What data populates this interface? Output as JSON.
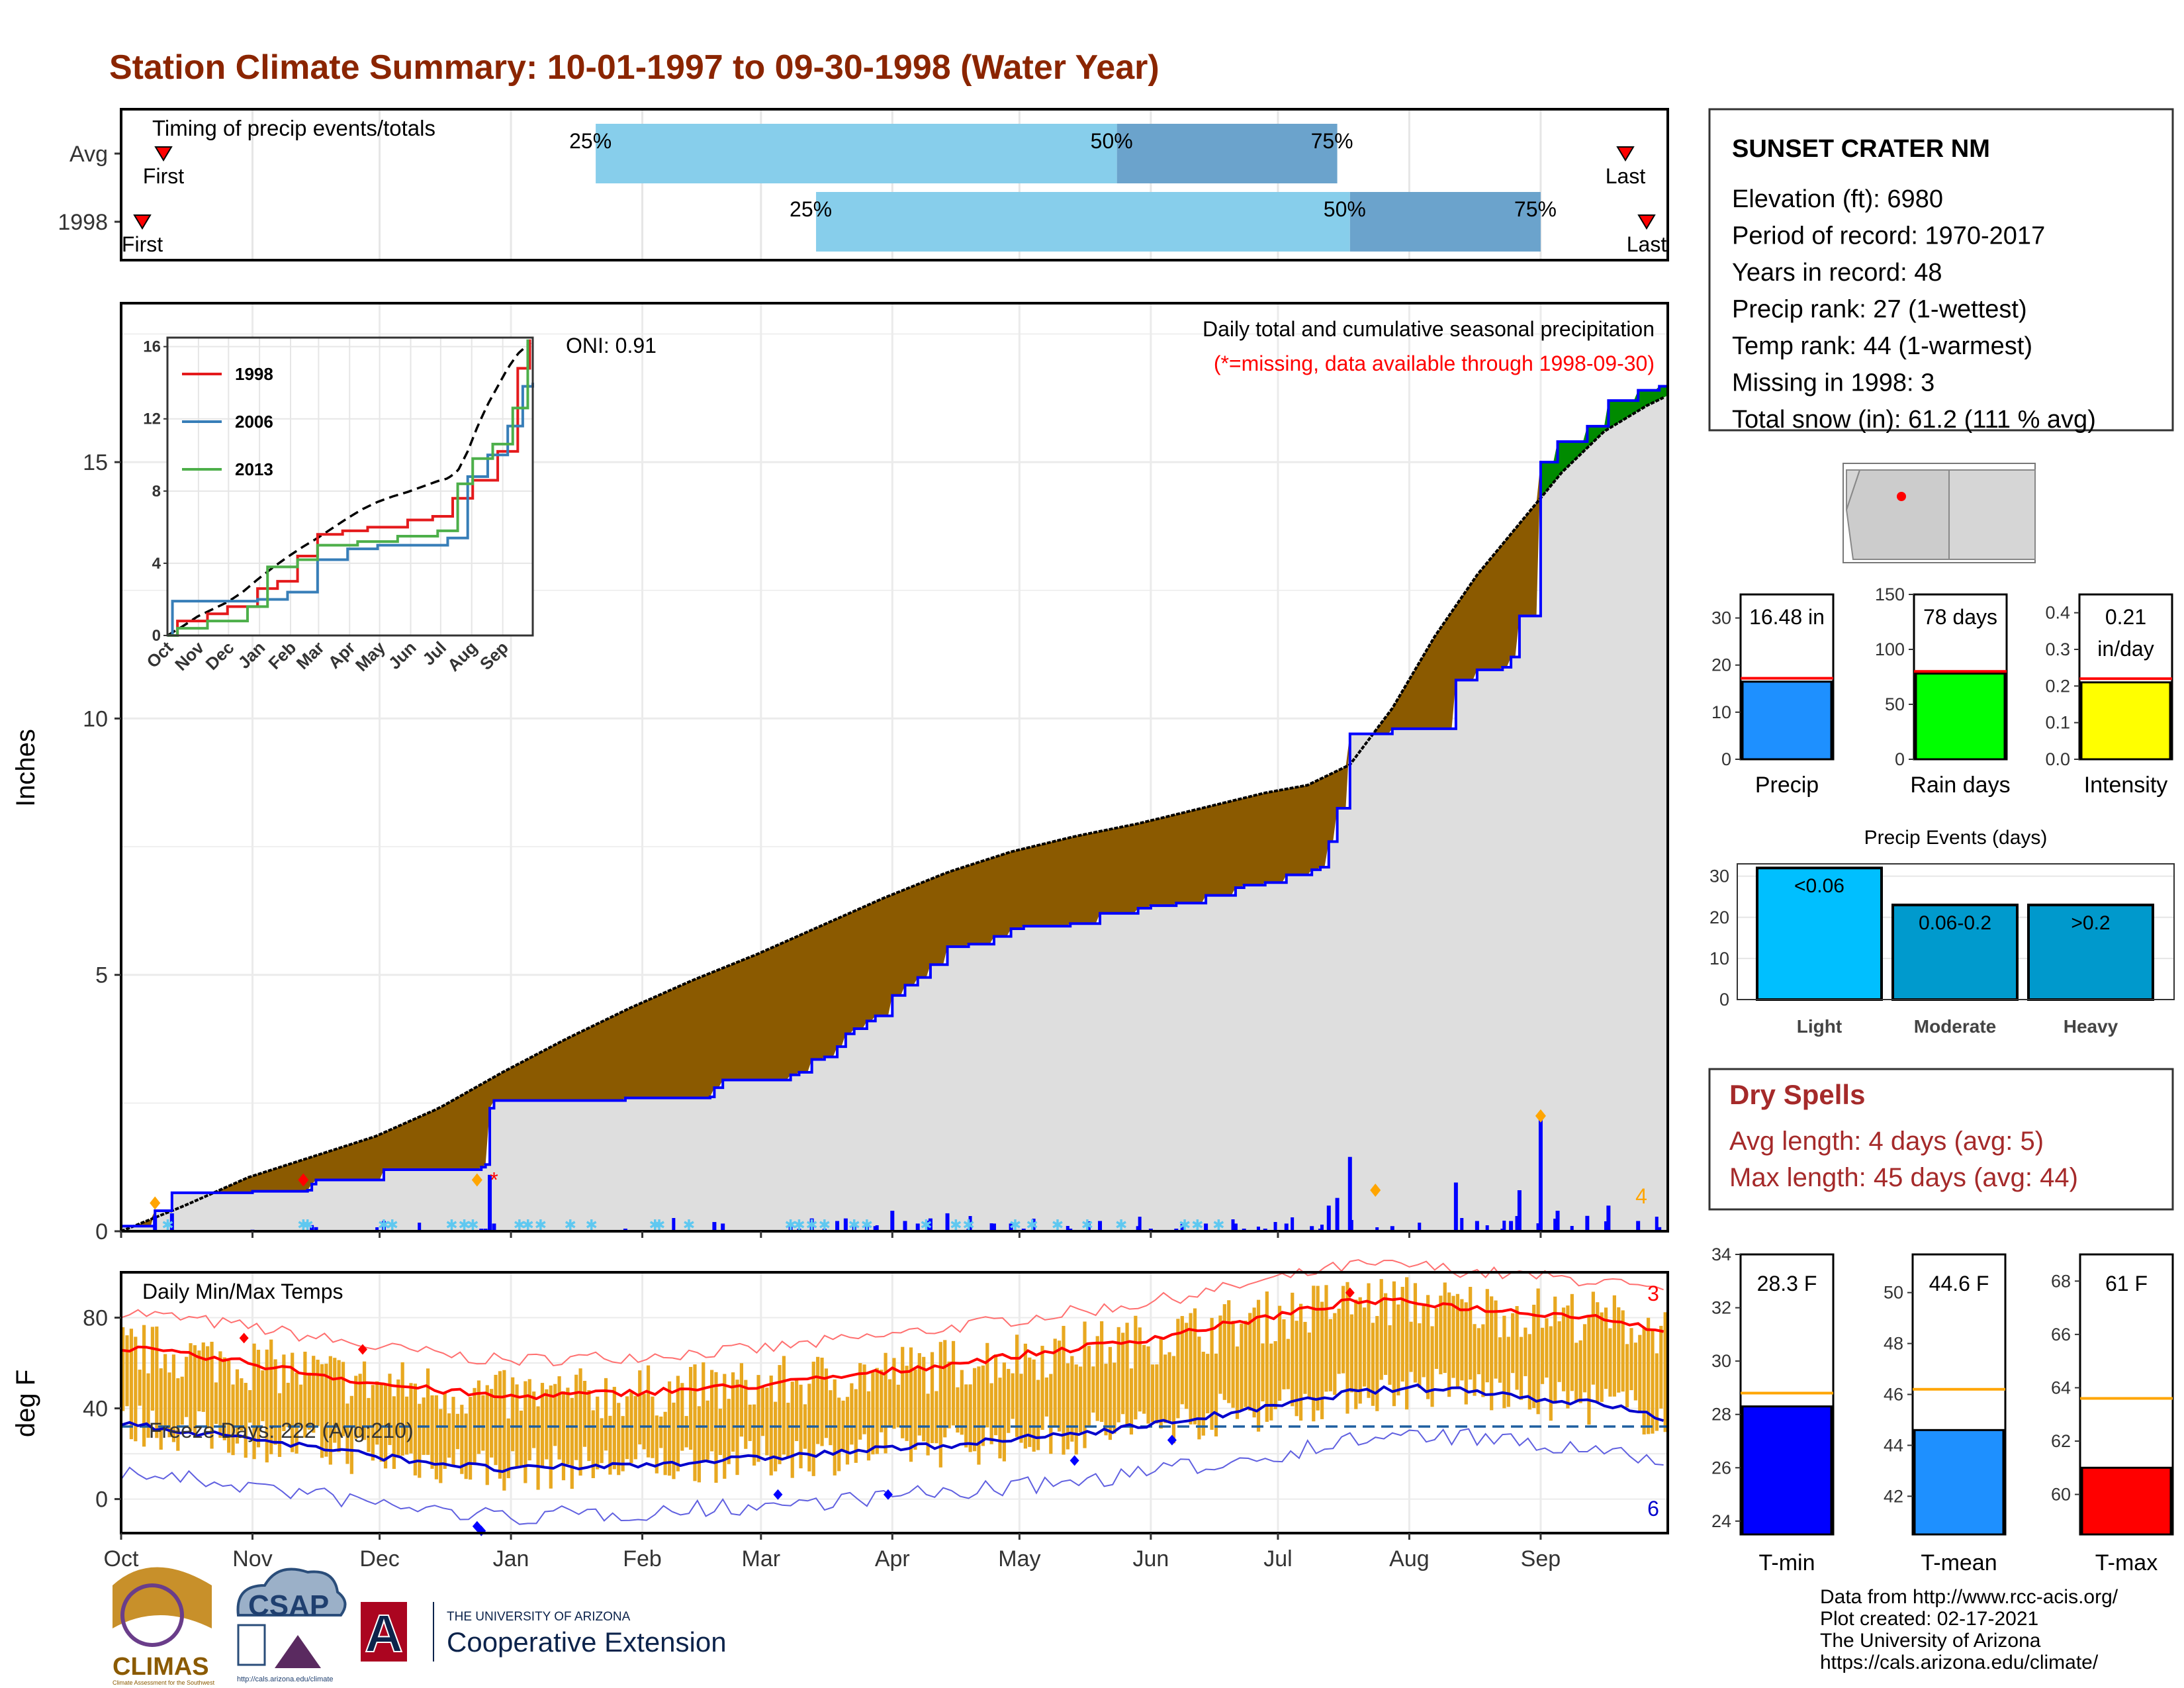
{
  "title": "Station Climate Summary: 10-01-1997 to 09-30-1998 (Water Year)",
  "colors": {
    "title": "#8B2500",
    "precip_bar": "#0000FF",
    "cum_fill": "#8B5A00",
    "excess_fill": "#008B00",
    "tmax": "#FF0000",
    "tmin": "#0000CC",
    "temp_range": "#E8A820",
    "light_blue": "#87CEEB",
    "steel_blue": "#6BA3CC"
  },
  "timing": {
    "label": "Timing of precip events/totals",
    "rows": [
      {
        "name": "Avg",
        "first": "First",
        "last": "Last",
        "p25": "25%",
        "p50": "50%",
        "p75": "75%",
        "first_doy": 10,
        "p25_doy": 112,
        "p50_doy": 235,
        "p75_doy": 287,
        "last_doy": 355
      },
      {
        "name": "1998",
        "first": "First",
        "last": "Last",
        "p25": "25%",
        "p50": "50%",
        "p75": "75%",
        "first_doy": 5,
        "p25_doy": 164,
        "p50_doy": 290,
        "p75_doy": 335,
        "last_doy": 360
      }
    ]
  },
  "precip": {
    "ylabel": "Inches",
    "yticks": [
      0,
      5,
      10,
      15
    ],
    "annotation_title": "Daily total and cumulative seasonal precipitation",
    "annotation_missing": "(*=missing, data available through 1998-09-30)",
    "oni": "ONI: 0.91",
    "missing_count": "4",
    "months": [
      "Oct",
      "Nov",
      "Dec",
      "Jan",
      "Feb",
      "Mar",
      "Apr",
      "May",
      "Jun",
      "Jul",
      "Aug",
      "Sep"
    ]
  },
  "chart_data": [
    {
      "type": "line",
      "title": "Daily total and cumulative seasonal precipitation",
      "ylabel": "Inches",
      "ylim": [
        0,
        18
      ],
      "series": [
        {
          "name": "cumulative_1998",
          "x": [
            0,
            8,
            12,
            31,
            44,
            45,
            46,
            62,
            85,
            86,
            87,
            88,
            119,
            139,
            140,
            142,
            158,
            160,
            163,
            166,
            169,
            171,
            173,
            176,
            178,
            182,
            185,
            188,
            191,
            195,
            200,
            206,
            210,
            213,
            224,
            231,
            240,
            243,
            249,
            256,
            263,
            265,
            270,
            275,
            281,
            283,
            285,
            287,
            290,
            300,
            315,
            320,
            326,
            328,
            330,
            335,
            339,
            346,
            351,
            358,
            363
          ],
          "y": [
            0.1,
            0.4,
            0.75,
            0.78,
            0.8,
            0.92,
            1.0,
            1.2,
            1.25,
            1.3,
            2.4,
            2.55,
            2.6,
            2.62,
            2.8,
            2.95,
            3.05,
            3.1,
            3.35,
            3.4,
            3.6,
            3.85,
            3.95,
            4.1,
            4.2,
            4.6,
            4.8,
            4.95,
            5.2,
            5.55,
            5.6,
            5.75,
            5.9,
            5.95,
            6.0,
            6.2,
            6.3,
            6.35,
            6.4,
            6.55,
            6.7,
            6.75,
            6.8,
            6.95,
            7.05,
            7.1,
            7.6,
            8.25,
            9.7,
            9.8,
            10.75,
            10.95,
            11.0,
            11.2,
            12.0,
            15.0,
            15.4,
            15.7,
            16.2,
            16.4,
            16.48
          ]
        },
        {
          "name": "cumulative_average",
          "x": [
            0,
            15,
            30,
            45,
            60,
            75,
            90,
            105,
            120,
            135,
            150,
            165,
            180,
            195,
            210,
            225,
            240,
            255,
            270,
            280,
            290,
            300,
            310,
            320,
            330,
            340,
            350,
            360,
            365
          ],
          "y": [
            0.0,
            0.5,
            1.05,
            1.45,
            1.85,
            2.4,
            3.1,
            3.75,
            4.35,
            4.9,
            5.4,
            5.95,
            6.5,
            7.0,
            7.4,
            7.7,
            7.95,
            8.25,
            8.55,
            8.7,
            9.1,
            10.2,
            11.6,
            12.8,
            13.8,
            14.8,
            15.6,
            16.1,
            16.3
          ]
        }
      ]
    },
    {
      "type": "line",
      "title": "Daily Min/Max Temps",
      "ylabel": "deg F",
      "ylim": [
        -15,
        100
      ],
      "freeze_line": 32,
      "series": [
        {
          "name": "Tmax_avg",
          "x": [
            0,
            30,
            60,
            90,
            120,
            150,
            180,
            210,
            240,
            270,
            290,
            305,
            320,
            335,
            350,
            365
          ],
          "y": [
            67,
            60,
            51,
            45,
            47,
            50,
            56,
            63,
            70,
            80,
            87,
            87,
            84,
            82,
            80,
            74
          ]
        },
        {
          "name": "Tmin_avg",
          "x": [
            0,
            30,
            60,
            90,
            120,
            150,
            180,
            210,
            240,
            270,
            290,
            305,
            320,
            335,
            350,
            365
          ],
          "y": [
            33,
            27,
            19,
            13,
            15,
            18,
            22,
            26,
            32,
            40,
            47,
            49,
            48,
            44,
            42,
            35
          ]
        }
      ]
    }
  ],
  "temps": {
    "label": "Daily Min/Max Temps",
    "ylabel": "deg F",
    "yticks": [
      0,
      40,
      80
    ],
    "freeze_text": "Freeze Days: 222 (Avg:210)",
    "count_high": "3",
    "count_low": "6"
  },
  "inset": {
    "yticks": [
      "0",
      "4",
      "8",
      "12",
      "16"
    ],
    "months": [
      "Oct",
      "Nov",
      "Dec",
      "Jan",
      "Feb",
      "Mar",
      "Apr",
      "May",
      "Jun",
      "Jul",
      "Aug",
      "Sep"
    ],
    "legend": [
      {
        "name": "1998",
        "color": "#E41A1C"
      },
      {
        "name": "2006",
        "color": "#377EB8"
      },
      {
        "name": "2013",
        "color": "#4DAF4A"
      }
    ]
  },
  "station": {
    "name": "SUNSET CRATER NM",
    "lines": [
      "Elevation (ft): 6980",
      "Period of record: 1970-2017",
      "Years in record: 48",
      "Precip rank: 27 (1-wettest)",
      "Temp rank: 44 (1-warmest)",
      "Missing in 1998: 3",
      "Total snow (in): 61.2 (111 % avg)"
    ]
  },
  "mini_bars": [
    {
      "label": "Precip",
      "value_text": "16.48 in",
      "value": 16.48,
      "avg": 17.2,
      "max": 35,
      "ticks": [
        "0",
        "10",
        "20",
        "30"
      ],
      "tickvals": [
        0,
        10,
        20,
        30
      ],
      "color": "#1E90FF"
    },
    {
      "label": "Rain days",
      "value_text": "78 days",
      "value": 78,
      "avg": 80,
      "max": 150,
      "ticks": [
        "0",
        "50",
        "100",
        "150"
      ],
      "tickvals": [
        0,
        50,
        100,
        150
      ],
      "color": "#00FF00"
    },
    {
      "label": "Intensity",
      "value_text": "0.21",
      "value_text2": "in/day",
      "value": 0.21,
      "avg": 0.22,
      "max": 0.45,
      "ticks": [
        "0.0",
        "0.1",
        "0.2",
        "0.3",
        "0.4"
      ],
      "tickvals": [
        0,
        0.1,
        0.2,
        0.3,
        0.4
      ],
      "color": "#FFFF00"
    }
  ],
  "events": {
    "title": "Precip Events (days)",
    "ticks": [
      "0",
      "10",
      "20",
      "30"
    ],
    "bars": [
      {
        "label": "Light",
        "bin": "<0.06",
        "value": 32,
        "color": "#00BFFF"
      },
      {
        "label": "Moderate",
        "bin": "0.06-0.2",
        "value": 23,
        "color": "#009ACD"
      },
      {
        "label": "Heavy",
        "bin": ">0.2",
        "value": 23,
        "color": "#0099CC"
      }
    ]
  },
  "dry_spells": {
    "title": "Dry Spells",
    "avg": "Avg length: 4 days (avg: 5)",
    "max": "Max length: 45 days (avg: 44)"
  },
  "temp_bars": [
    {
      "label": "T-min",
      "value_text": "28.3 F",
      "value": 28.3,
      "avg": 28.8,
      "min": 23.5,
      "max": 34,
      "ticks": [
        "24",
        "26",
        "28",
        "30",
        "32",
        "34"
      ],
      "tickvals": [
        24,
        26,
        28,
        30,
        32,
        34
      ],
      "color": "#0000FF"
    },
    {
      "label": "T-mean",
      "value_text": "44.6 F",
      "value": 44.6,
      "avg": 46.2,
      "min": 40.5,
      "max": 51.5,
      "ticks": [
        "42",
        "44",
        "46",
        "48",
        "50"
      ],
      "tickvals": [
        42,
        44,
        46,
        48,
        50
      ],
      "color": "#1E90FF"
    },
    {
      "label": "T-max",
      "value_text": "61 F",
      "value": 61,
      "avg": 63.6,
      "min": 58.5,
      "max": 69,
      "ticks": [
        "60",
        "62",
        "64",
        "66",
        "68"
      ],
      "tickvals": [
        60,
        62,
        64,
        66,
        68
      ],
      "color": "#FF0000"
    }
  ],
  "footer": {
    "lines": [
      "Data from http://www.rcc-acis.org/",
      "Plot created: 02-17-2021",
      "The University of Arizona",
      "https://cals.arizona.edu/climate/"
    ]
  },
  "logos": {
    "climas": "CLIMAS",
    "climas_sub": "Climate Assessment for the Southwest",
    "csap": "CSAP",
    "csap_sub": "http://cals.arizona.edu/climate",
    "ua_letter": "A",
    "ua_top": "THE UNIVERSITY OF ARIZONA",
    "ua_bottom": "Cooperative Extension"
  }
}
